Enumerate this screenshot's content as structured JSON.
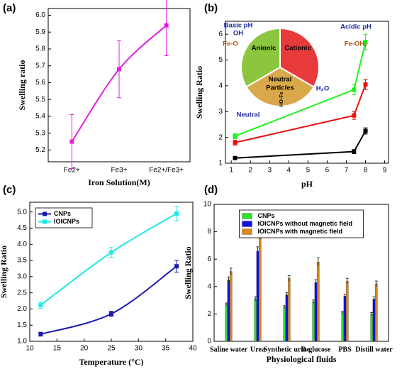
{
  "chart_data": [
    {
      "type": "line",
      "label": "(a)",
      "x_label": "Iron Solution(M)",
      "y_label": "Swelling ratio",
      "categories": [
        "Fe2+",
        "Fe3+",
        "Fe2+/Fe3+"
      ],
      "series": [
        {
          "color": "#e020e0",
          "values": [
            5.25,
            5.68,
            5.94
          ],
          "errors": [
            0.16,
            0.17,
            0.18
          ]
        }
      ],
      "smooth": true,
      "ylim": [
        5.13,
        6.04
      ],
      "yticks": [
        5.2,
        5.3,
        5.4,
        5.5,
        5.6,
        5.7,
        5.8,
        5.9,
        {
          "value": 6,
          "label": "6.0"
        }
      ]
    },
    {
      "type": "line",
      "label": "(b)",
      "x_label": "pH",
      "y_label": "Swelling Ratio",
      "x": [
        1.2,
        7.4,
        8
      ],
      "series": [
        {
          "color": "#000000",
          "values": [
            1.2,
            1.45,
            2.25
          ],
          "errors": [
            0.05,
            0.08,
            0.12
          ]
        },
        {
          "color": "#e81010",
          "values": [
            1.8,
            2.85,
            4.05
          ],
          "errors": [
            0.1,
            0.15,
            0.2
          ]
        },
        {
          "color": "#20f020",
          "values": [
            2.05,
            3.85,
            5.7
          ],
          "errors": [
            0.1,
            0.2,
            0.3
          ]
        }
      ],
      "xlim": [
        0.7,
        9.2
      ],
      "xticks": [
        1,
        2,
        3,
        4,
        5,
        6,
        7,
        8,
        9
      ],
      "ylim": [
        1,
        6.5
      ],
      "yticks": [
        1,
        2,
        3,
        4,
        5,
        6
      ],
      "annotations": [
        "Basic pH",
        "OH",
        "Fe-O",
        "Acidic pH",
        "Fe-OH₂",
        "Anionic",
        "Cationic",
        "Neutral",
        "Particles",
        "H₂O",
        "Neutral",
        "HO-Fe"
      ]
    },
    {
      "type": "line",
      "label": "(c)",
      "x_label": "Temperature (°C)",
      "y_label": "Swelling Ratio",
      "x": [
        12,
        25,
        37
      ],
      "series": [
        {
          "name": "CNPs",
          "color": "#1a1ab0",
          "values": [
            1.22,
            1.85,
            3.32
          ],
          "errors": [
            0.06,
            0.08,
            0.18
          ]
        },
        {
          "name": "IOICNPs",
          "color": "#20e8e8",
          "values": [
            2.12,
            3.75,
            4.95
          ],
          "errors": [
            0.1,
            0.15,
            0.22
          ]
        }
      ],
      "smooth": true,
      "legend": "upper left",
      "xlim": [
        10,
        40
      ],
      "xticks": [
        10,
        15,
        20,
        25,
        30,
        35,
        40
      ],
      "ylim": [
        1,
        5.3
      ],
      "yticks": [
        {
          "value": 1,
          "label": "1.0"
        },
        1.5,
        {
          "value": 2,
          "label": "2.0"
        },
        2.5,
        {
          "value": 3,
          "label": "3.0"
        },
        3.5,
        {
          "value": 4,
          "label": "4.0"
        },
        4.5,
        {
          "value": 5,
          "label": "5.0"
        }
      ]
    },
    {
      "type": "bar",
      "label": "(d)",
      "x_label": "Physiological fluids",
      "y_label": "Swelling Ratio",
      "categories": [
        "Saline water",
        "Urea",
        "Synthetic urine",
        "D-glucose",
        "PBS",
        "Distill water"
      ],
      "series": [
        {
          "name": "CNPs",
          "color": "#30e030",
          "values": [
            2.7,
            3.1,
            2.5,
            2.9,
            2.1,
            2.0
          ],
          "errors": [
            0.1,
            0.15,
            0.1,
            0.12,
            0.1,
            0.1
          ]
        },
        {
          "name": "IOICNPs without magnetic field",
          "color": "#1010e0",
          "values": [
            4.5,
            6.6,
            3.4,
            4.3,
            3.3,
            3.1
          ],
          "errors": [
            0.2,
            0.3,
            0.15,
            0.2,
            0.15,
            0.15
          ]
        },
        {
          "name": "IOICNPs with magnetic field",
          "color": "#d88a20",
          "values": [
            5.1,
            7.8,
            4.6,
            5.8,
            4.4,
            4.2
          ],
          "errors": [
            0.25,
            0.35,
            0.2,
            0.3,
            0.2,
            0.2
          ]
        }
      ],
      "legend": "upper center",
      "ylim": [
        0,
        10
      ],
      "yticks": [
        0,
        2,
        4,
        6,
        8,
        10
      ]
    }
  ]
}
